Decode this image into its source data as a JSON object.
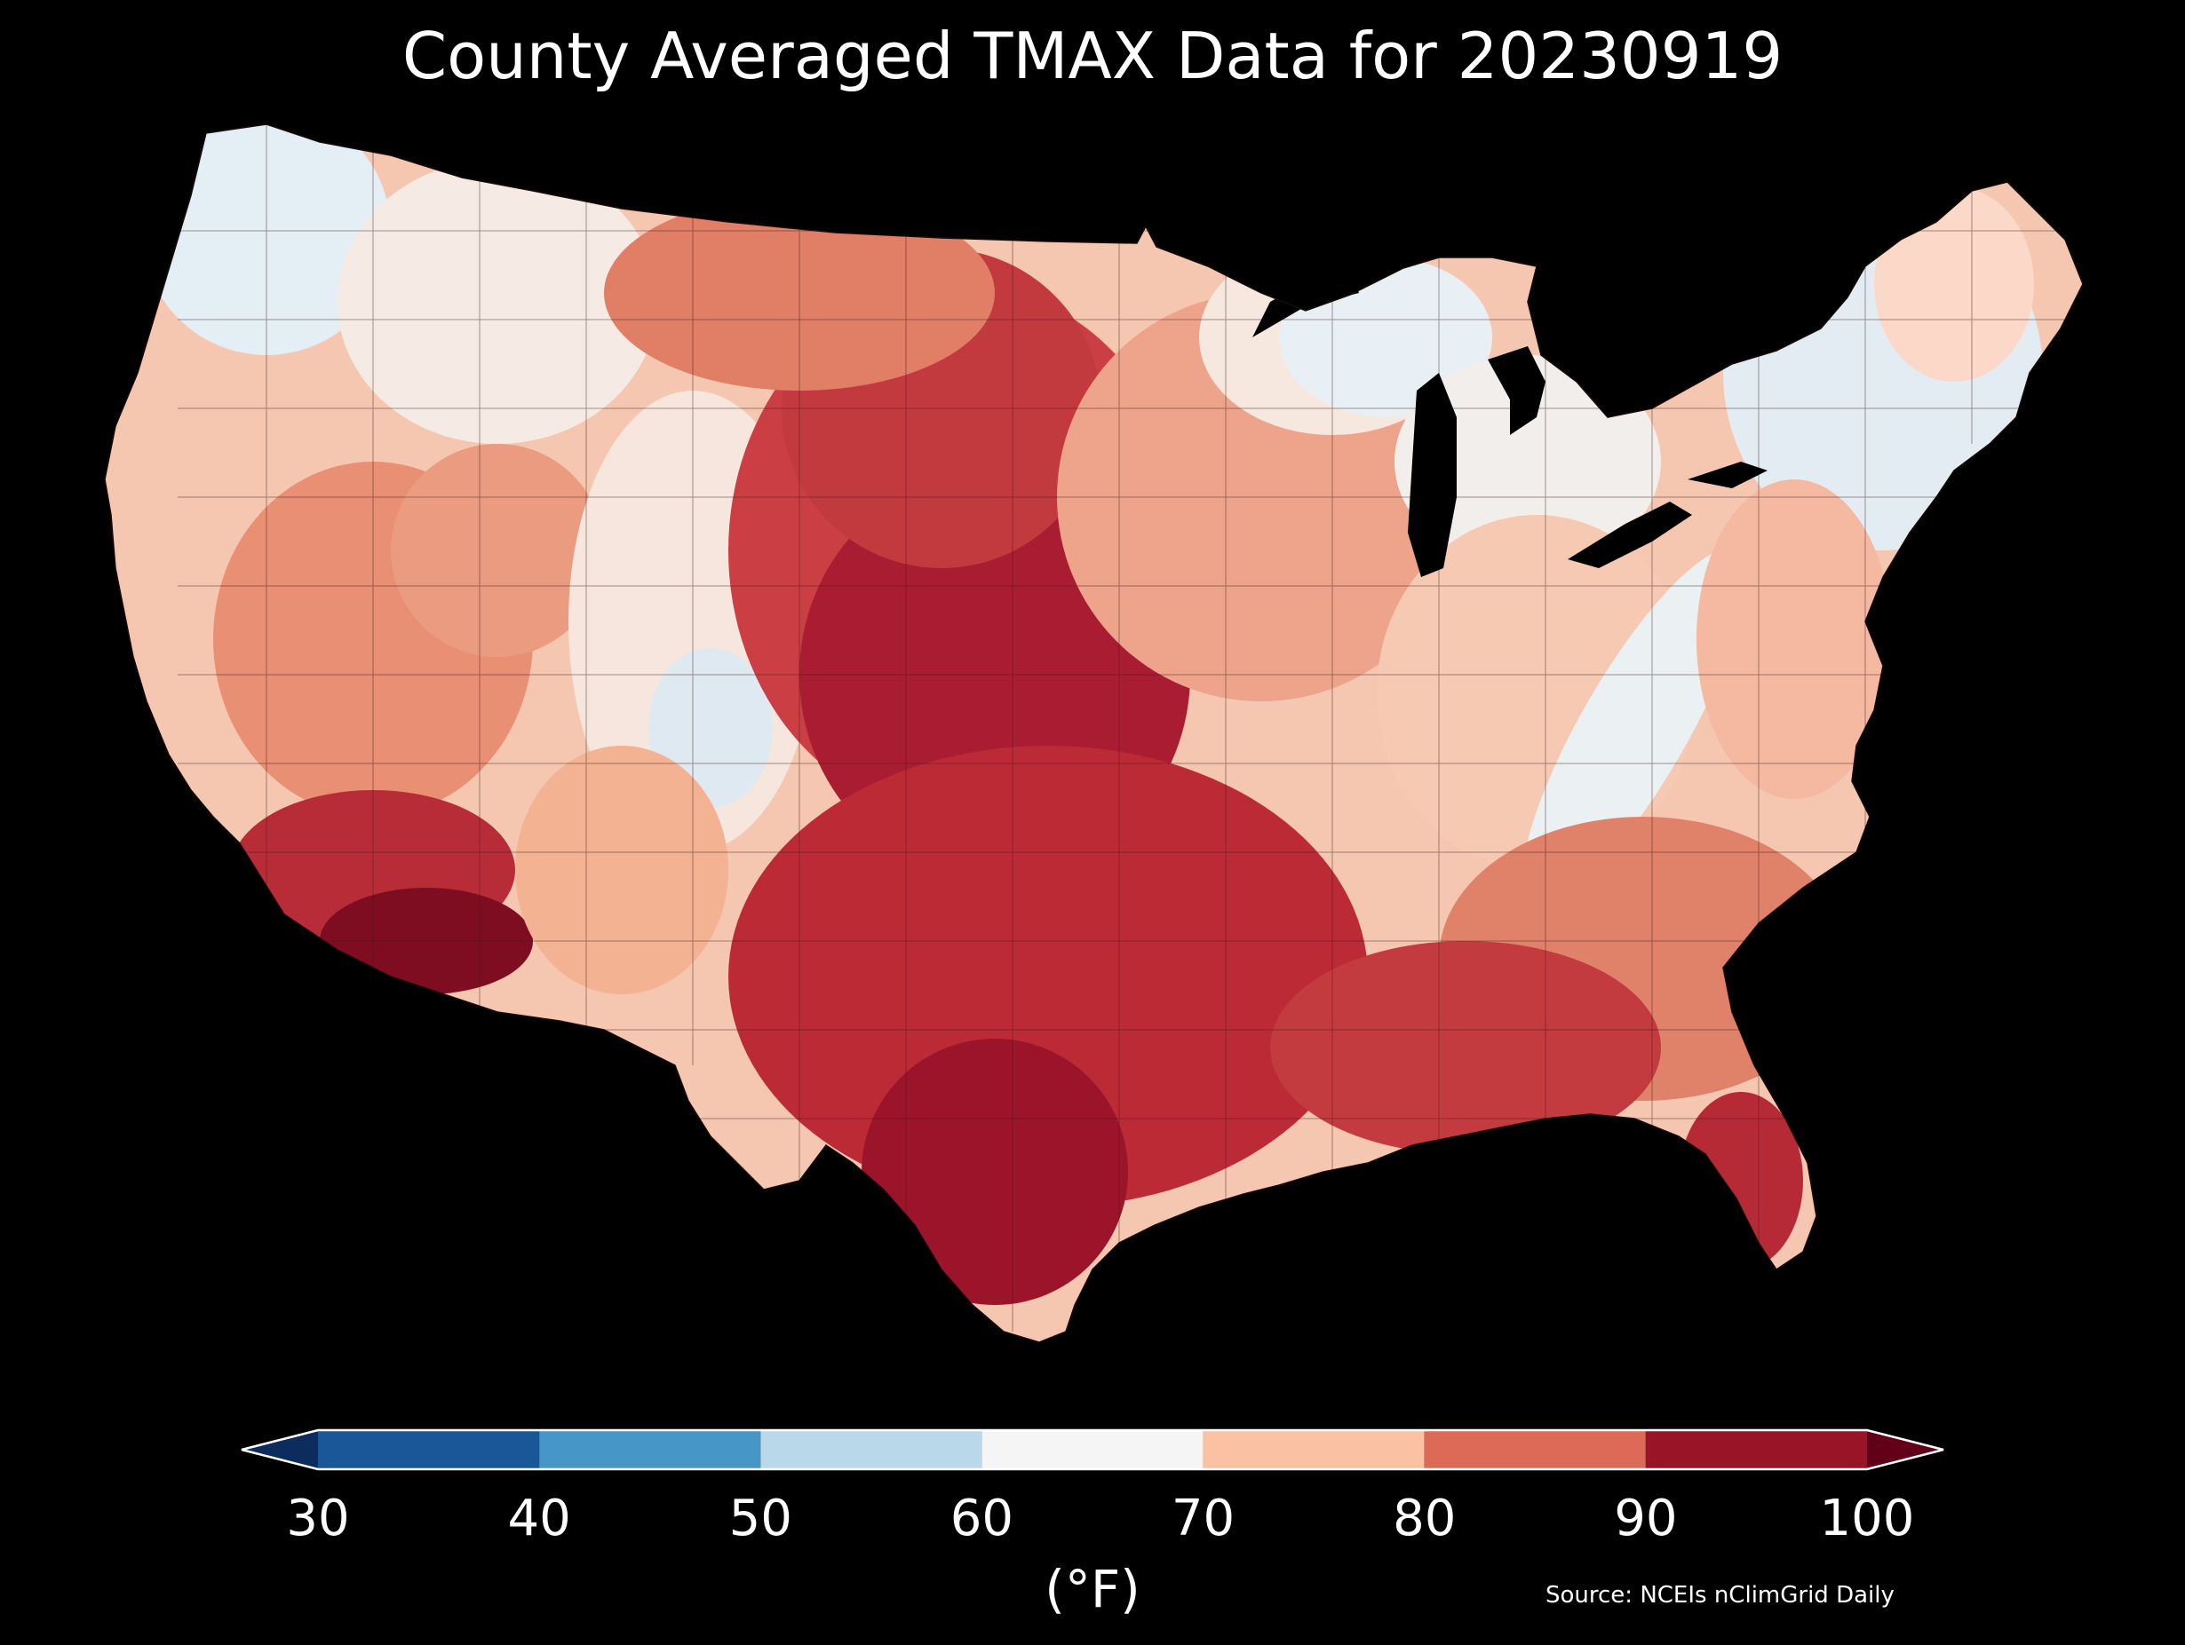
{
  "title": "County Averaged TMAX Data for 20230919",
  "colorbar": {
    "unit_label": "(°F)",
    "ticks": [
      "30",
      "40",
      "50",
      "60",
      "70",
      "80",
      "90",
      "100"
    ],
    "bins": [
      {
        "min": 30,
        "max": 40,
        "color": "#1a5799"
      },
      {
        "min": 40,
        "max": 50,
        "color": "#4696c8"
      },
      {
        "min": 50,
        "max": 60,
        "color": "#b9d9eb"
      },
      {
        "min": 60,
        "max": 70,
        "color": "#f5f5f5"
      },
      {
        "min": 70,
        "max": 80,
        "color": "#fbc1a3"
      },
      {
        "min": 80,
        "max": 90,
        "color": "#dc6a56"
      },
      {
        "min": 90,
        "max": 100,
        "color": "#991427"
      }
    ],
    "under_color": "#0b2c5c",
    "over_color": "#620018",
    "extend": "both"
  },
  "map": {
    "region": "Contiguous United States",
    "variable": "TMAX",
    "layer": "county choropleth"
  },
  "source": "Source: NCEIs nClimGrid Daily"
}
